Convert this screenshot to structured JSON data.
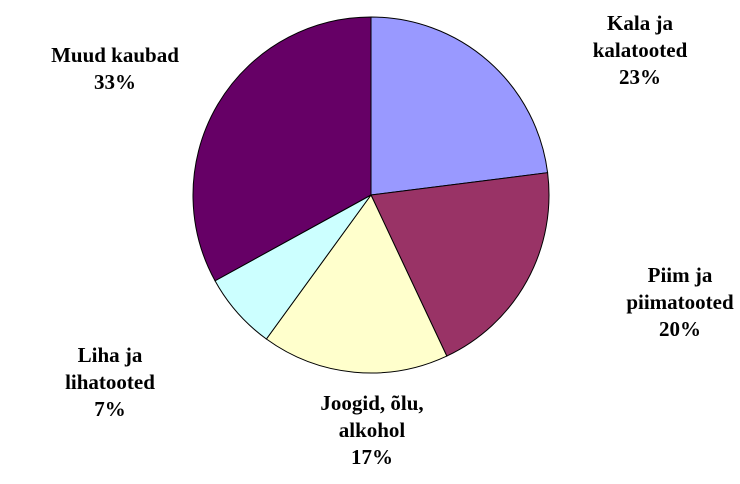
{
  "chart_data": {
    "type": "pie",
    "categories": [
      "Kala ja\nkalatooted",
      "Piim ja\npiimatooted",
      "Joogid, õlu,\nalkohol",
      "Liha ja\nlihatooted",
      "Muud kaubad"
    ],
    "values": [
      23,
      20,
      17,
      7,
      33
    ],
    "value_labels": [
      "23%",
      "20%",
      "17%",
      "7%",
      "33%"
    ],
    "colors": [
      "#9999ff",
      "#993366",
      "#ffffcc",
      "#ccffff",
      "#660066"
    ]
  }
}
